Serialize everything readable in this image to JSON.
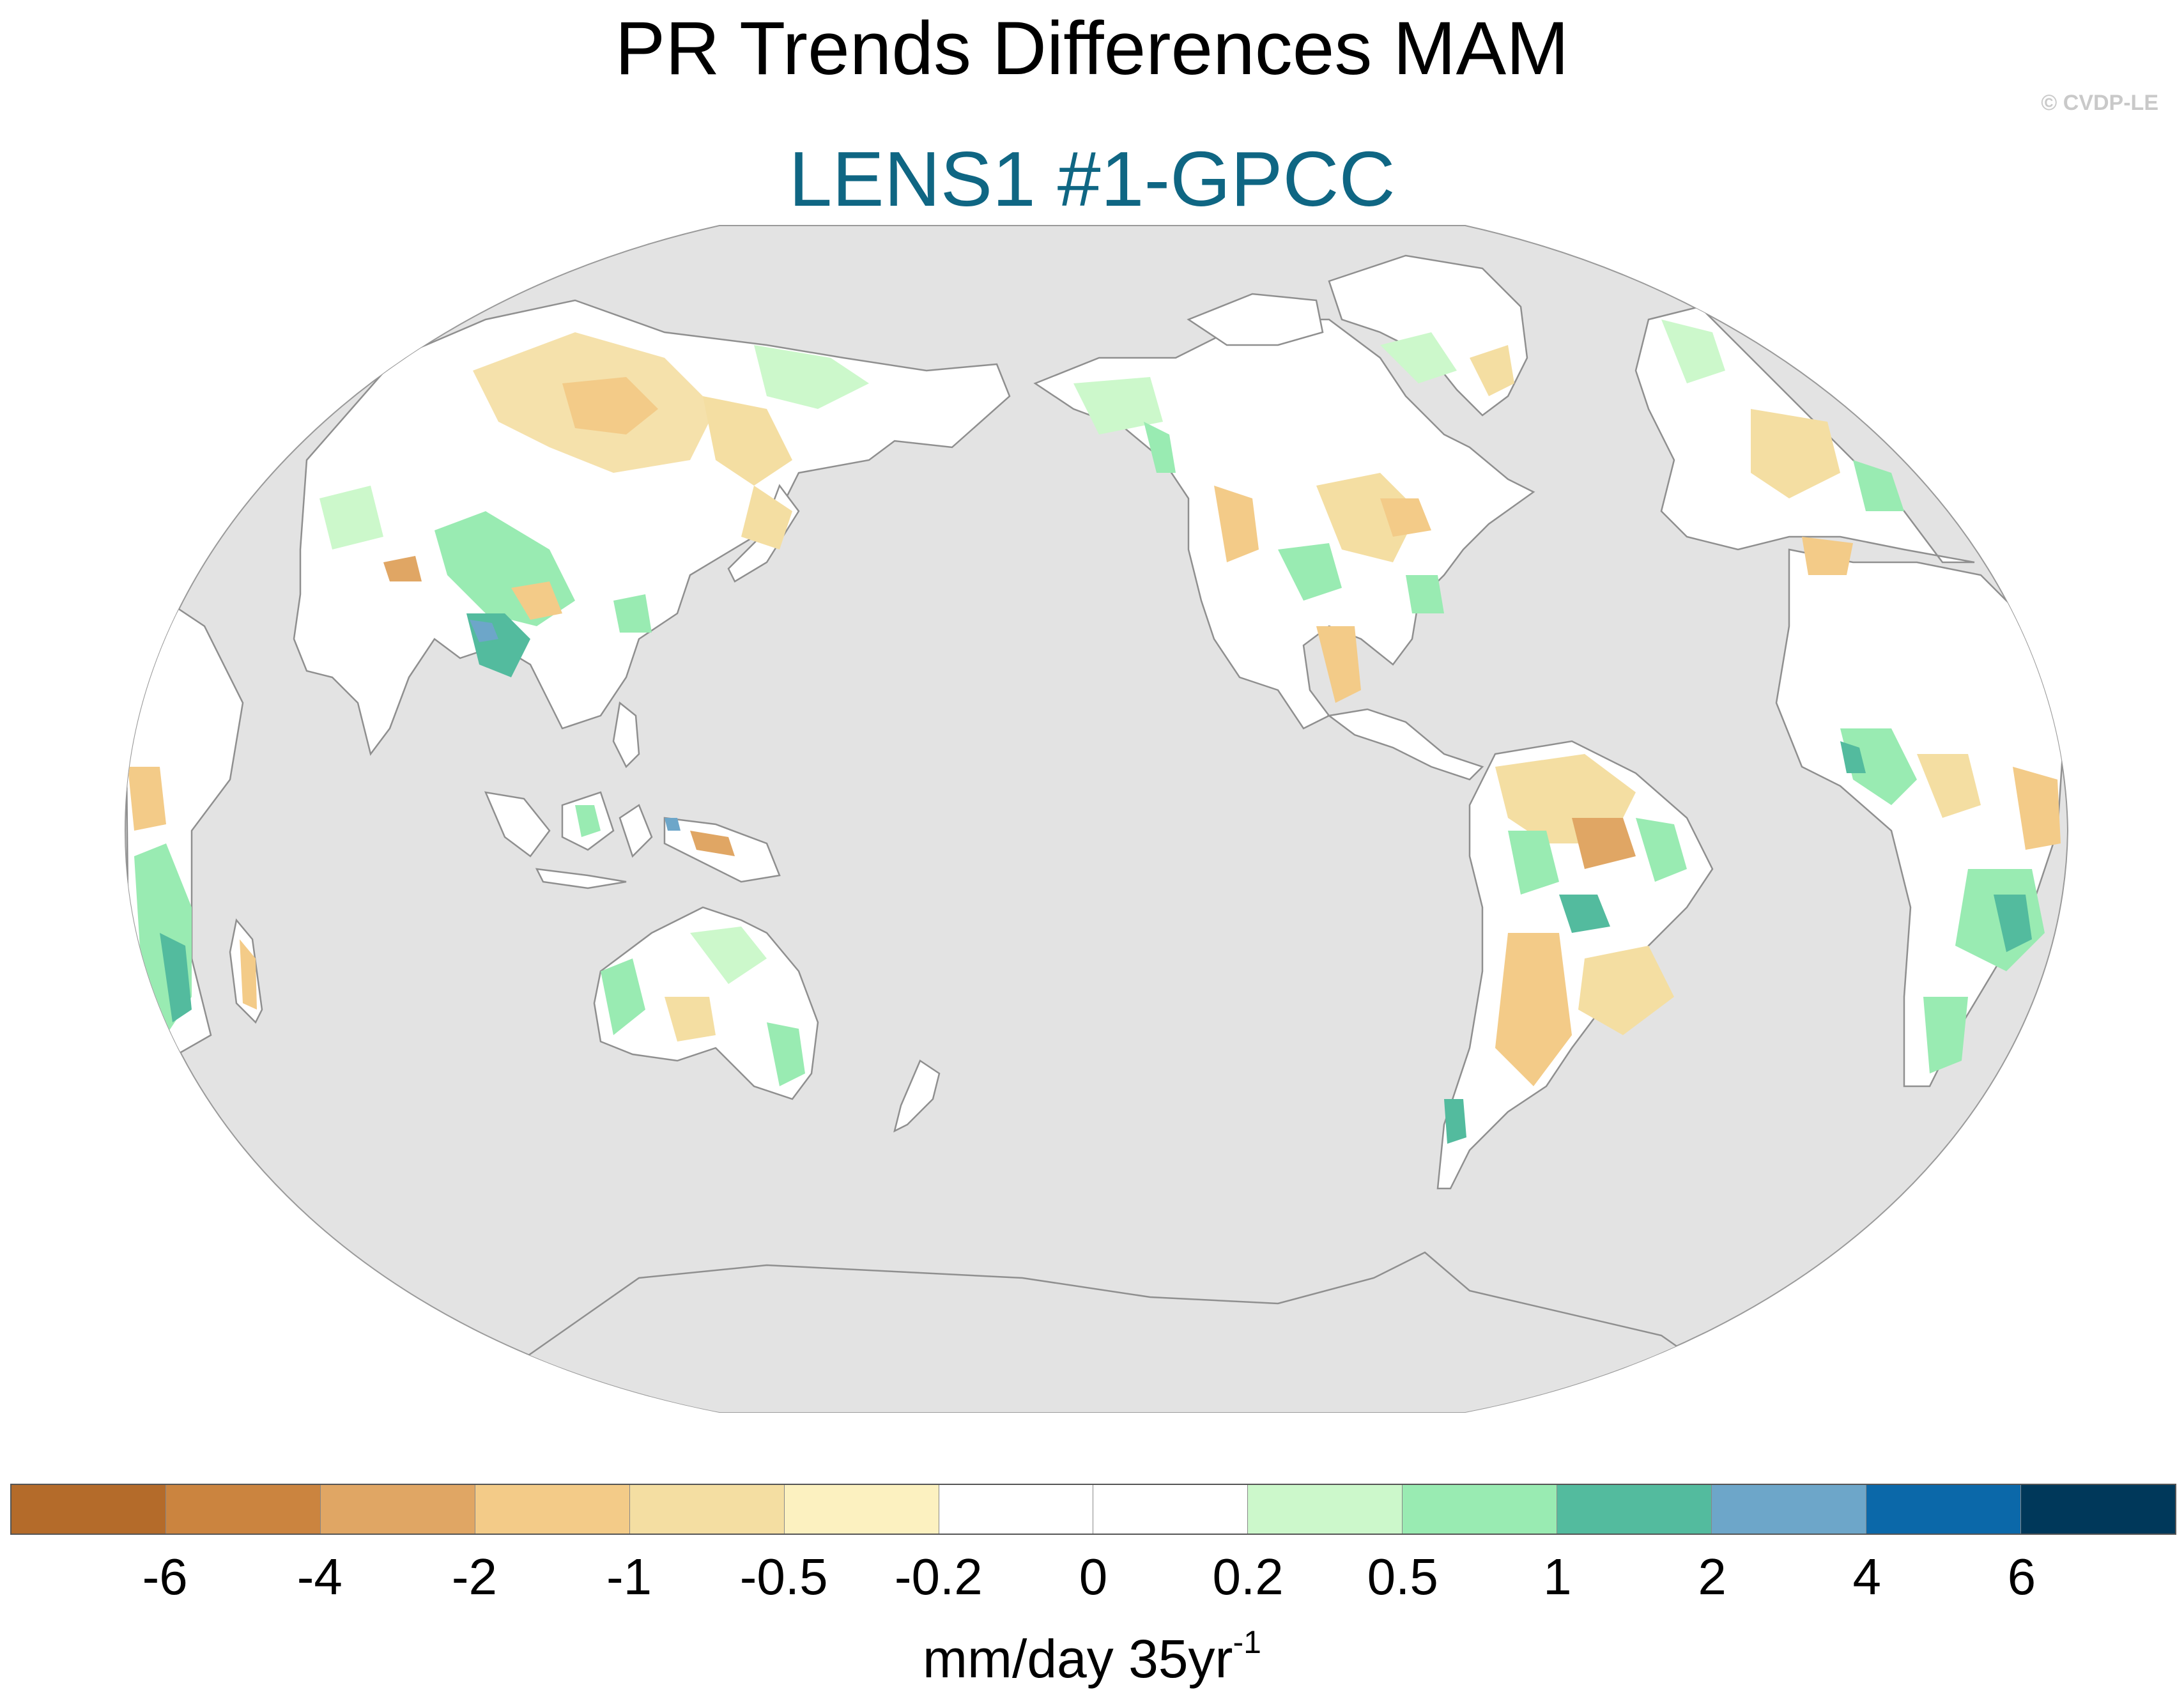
{
  "title": "PR Trends Differences MAM",
  "subtitle": "LENS1 #1-GPCC",
  "copyright": "© CVDP-LE",
  "colors": {
    "ocean": "#e3e3e3",
    "land": "#ffffff",
    "coastline": "#8f8f8f",
    "subtitle": "#0f6683"
  },
  "colorbar": {
    "colors": [
      "#b46b2a",
      "#cb843f",
      "#e0a664",
      "#f3cb88",
      "#f4dea2",
      "#fcf1c0",
      "#ffffff",
      "#ffffff",
      "#ccf8cb",
      "#99ebb2",
      "#53bb9e",
      "#6da6c9",
      "#0b68a9",
      "#00385a"
    ],
    "ticks": [
      "-6",
      "-4",
      "-2",
      "-1",
      "-0.5",
      "-0.2",
      "0",
      "0.2",
      "0.5",
      "1",
      "2",
      "4",
      "6"
    ],
    "units_main": "mm/day 35yr",
    "units_sup": "-1"
  }
}
